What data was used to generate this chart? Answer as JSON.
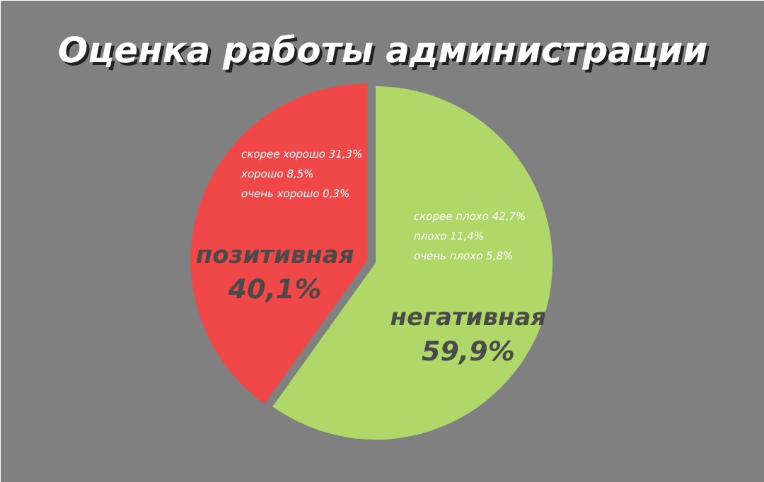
{
  "chart_data": {
    "type": "pie",
    "title": "Оценка работы администрации",
    "categories": [
      "позитивная",
      "негативная"
    ],
    "values": [
      40.1,
      59.9
    ],
    "colors": [
      "#f04848",
      "#b0d868"
    ],
    "value_labels": [
      "40,1%",
      "59,9%"
    ],
    "annotations": [
      "скорее хорошо 31,3%",
      "хорошо 8,5%",
      "очень хорошо 0,3%",
      "скорее плохо 42,7%",
      "плохо 11,4%",
      "очень плохо 5,8%"
    ]
  }
}
